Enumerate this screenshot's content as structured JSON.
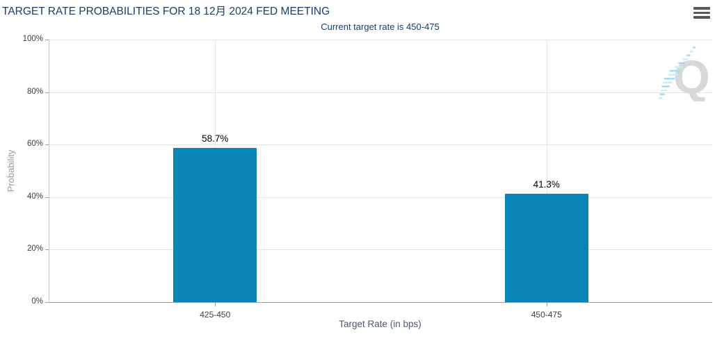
{
  "chart_data": {
    "type": "bar",
    "title": "TARGET RATE PROBABILITIES FOR 18 12月 2024 FED MEETING",
    "subtitle": "Current target rate is 450-475",
    "categories": [
      "425-450",
      "450-475"
    ],
    "values": [
      58.7,
      41.3
    ],
    "value_labels": [
      "58.7%",
      "41.3%"
    ],
    "xlabel": "Target Rate (in bps)",
    "ylabel": "Probability",
    "ylim": [
      0,
      100
    ],
    "y_ticks": [
      "0%",
      "20%",
      "40%",
      "60%",
      "80%",
      "100%"
    ],
    "grid": true,
    "legend": "none",
    "bar_color": "#0884b7"
  },
  "header": {
    "menu_icon": "hamburger-icon"
  },
  "watermark": {
    "letter": "Q"
  },
  "colors": {
    "title_text": "#1c3c6b",
    "subtitle_text": "#1c3c6b",
    "bar": "#0884b7",
    "axis_line": "#9b9b9b",
    "gridline": "#e4e4e4",
    "tick_label": "#3c3c3c",
    "x_axis_title": "#4e586e",
    "y_axis_title": "#9a9a9a",
    "watermark_q": "#d8d8d8",
    "watermark_dashes": "#a4daf3",
    "menu_icon": "#58595b"
  }
}
